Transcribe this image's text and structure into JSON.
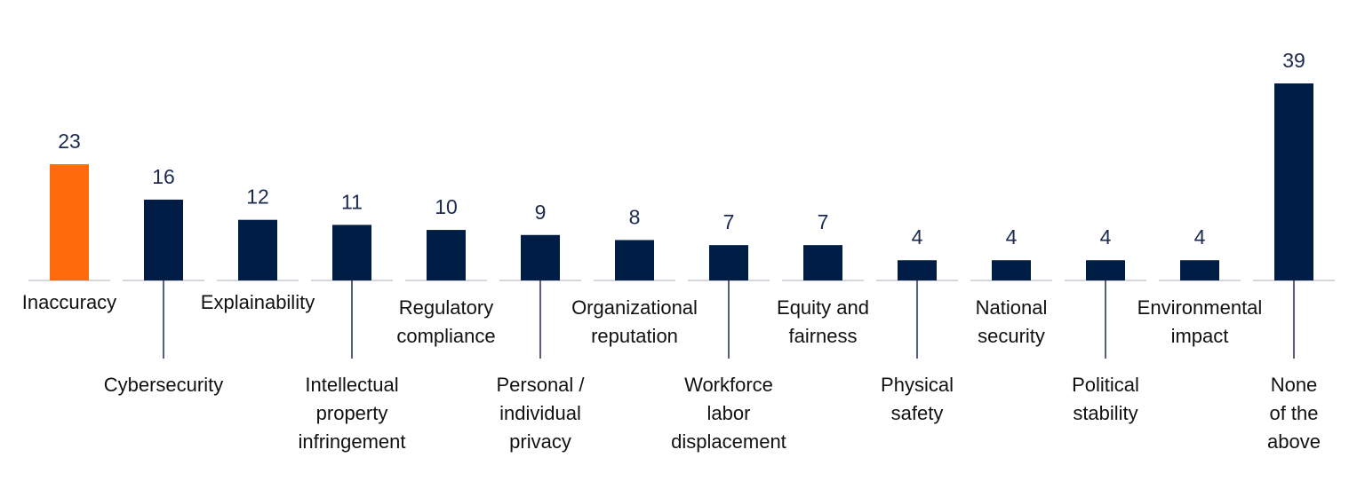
{
  "colors": {
    "highlight": "#ff6a0d",
    "bar": "#001e45",
    "value_text": "#1b2a52",
    "label_text": "#111111",
    "baseline": "#c9ccd3",
    "leader": "#1b2a52"
  },
  "chart_data": {
    "type": "bar",
    "title": "",
    "xlabel": "",
    "ylabel": "",
    "ylim": [
      0,
      39
    ],
    "grid": false,
    "legend": "none",
    "highlight_index": 0,
    "categories": [
      "Inaccuracy",
      "Cybersecurity",
      "Explainability",
      "Intellectual property infringement",
      "Regulatory compliance",
      "Personal / individual privacy",
      "Organizational reputation",
      "Workforce labor displacement",
      "Equity and fairness",
      "Physical safety",
      "National security",
      "Political stability",
      "Environmental impact",
      "None of the above"
    ],
    "category_label_lines": [
      [
        "Inaccuracy"
      ],
      [
        "Cybersecurity"
      ],
      [
        "Explainability"
      ],
      [
        "Intellectual",
        "property",
        "infringement"
      ],
      [
        "Regulatory",
        "compliance"
      ],
      [
        "Personal /",
        "individual",
        "privacy"
      ],
      [
        "Organizational",
        "reputation"
      ],
      [
        "Workforce",
        "labor",
        "displacement"
      ],
      [
        "Equity and",
        "fairness"
      ],
      [
        "Physical",
        "safety"
      ],
      [
        "National",
        "security"
      ],
      [
        "Political",
        "stability"
      ],
      [
        "Environmental",
        "impact"
      ],
      [
        "None",
        "of the",
        "above"
      ]
    ],
    "values": [
      23,
      16,
      12,
      11,
      10,
      9,
      8,
      7,
      7,
      4,
      4,
      4,
      4,
      39
    ],
    "value_labels": [
      "23",
      "16",
      "12",
      "11",
      "10",
      "9",
      "8",
      "7",
      "7",
      "4",
      "4",
      "4",
      "4",
      "39"
    ]
  }
}
